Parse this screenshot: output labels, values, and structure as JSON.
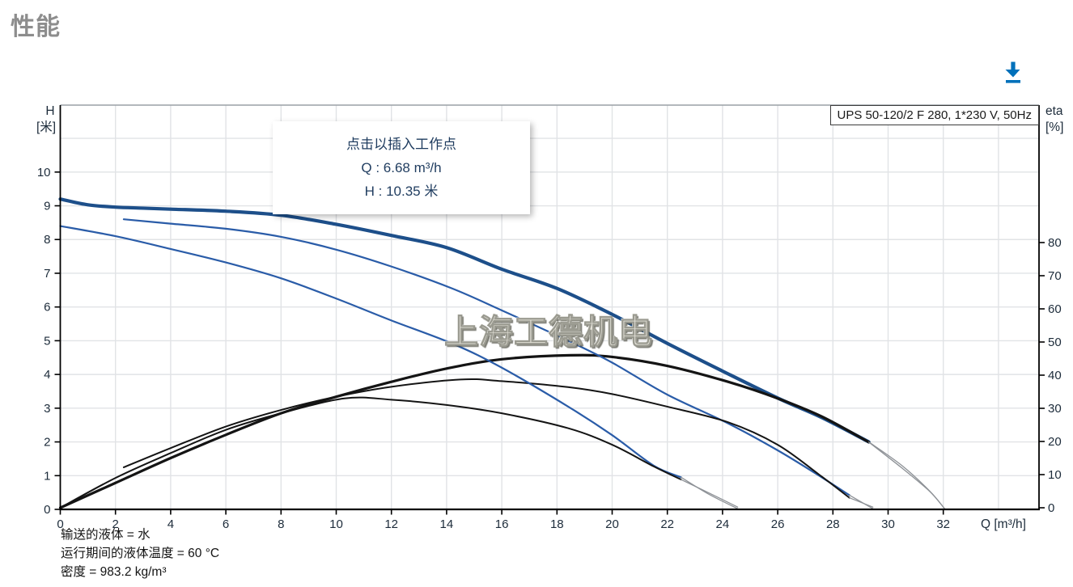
{
  "page": {
    "title": "性能"
  },
  "chart": {
    "pump_label": "UPS 50-120/2 F 280, 1*230 V, 50Hz",
    "tooltip": {
      "line1": "点击以插入工作点",
      "line2": "Q : 6.68 m³/h",
      "line3": "H : 10.35 米"
    },
    "watermark": "上海工德机电",
    "annotations": [
      "输送的液体 = 水",
      "运行期间的液体温度 = 60 °C",
      "密度 = 983.2 kg/m³"
    ],
    "axes": {
      "left": {
        "title_line1": "H",
        "title_line2": "[米]",
        "ticks": [
          0,
          1,
          2,
          3,
          4,
          5,
          6,
          7,
          8,
          9,
          10
        ]
      },
      "right": {
        "title_line1": "eta",
        "title_line2": "[%]",
        "ticks": [
          0,
          10,
          20,
          30,
          40,
          50,
          60,
          70,
          80
        ]
      },
      "bottom": {
        "title": "Q [m³/h]",
        "ticks": [
          0,
          2,
          4,
          6,
          8,
          10,
          12,
          14,
          16,
          18,
          20,
          22,
          24,
          26,
          28,
          30,
          32
        ]
      }
    },
    "colors": {
      "accent_blue": "#0070ba",
      "curve_blue_thick": "#1d4f8a",
      "curve_blue": "#2a5ca8",
      "curve_black": "#141414",
      "curve_gray": "#8d9196",
      "grid": "#e1e3e6",
      "axis": "#000000",
      "top_border": "#9aa0a6",
      "tick_text": "#1c2b3a",
      "tooltip_text": "#1f3c5f",
      "title_gray": "#8d8d8d"
    }
  },
  "chart_data": {
    "type": "line",
    "title": "UPS 50-120/2 F 280, 1*230 V, 50Hz",
    "xlabel": "Q [m³/h]",
    "ylabel_left": "H [米]",
    "ylabel_right": "eta [%]",
    "x_range": [
      0,
      35.5
    ],
    "y_left_range": [
      0,
      12
    ],
    "y_right_range": [
      0,
      122
    ],
    "grid": true,
    "x_grid_step": 2,
    "y_grid_step": 1,
    "series": [
      {
        "name": "head-curve-speed3",
        "axis": "H",
        "style": "thick-blue",
        "points": [
          [
            0,
            9.2
          ],
          [
            1,
            9.03
          ],
          [
            2,
            8.96
          ],
          [
            3,
            8.93
          ],
          [
            4,
            8.9
          ],
          [
            6,
            8.84
          ],
          [
            8,
            8.72
          ],
          [
            10,
            8.45
          ],
          [
            12,
            8.12
          ],
          [
            14,
            7.76
          ],
          [
            16,
            7.12
          ],
          [
            18,
            6.55
          ],
          [
            20,
            5.78
          ],
          [
            22,
            4.92
          ],
          [
            24,
            4.1
          ],
          [
            26,
            3.3
          ],
          [
            27.6,
            2.72
          ],
          [
            29.3,
            2.0
          ]
        ]
      },
      {
        "name": "head-curve-speed3-extension",
        "axis": "H",
        "style": "gray-thin",
        "points": [
          [
            29.3,
            2.0
          ],
          [
            30.5,
            1.3
          ],
          [
            31.5,
            0.55
          ],
          [
            32.05,
            0.02
          ]
        ]
      },
      {
        "name": "eta-curve-speed3",
        "axis": "eta",
        "style": "thick-black",
        "points": [
          [
            0,
            0
          ],
          [
            2,
            7.5
          ],
          [
            4,
            15
          ],
          [
            6,
            22
          ],
          [
            8,
            28.5
          ],
          [
            10,
            33.5
          ],
          [
            12,
            38
          ],
          [
            14,
            42
          ],
          [
            16,
            44.8
          ],
          [
            18.5,
            46
          ],
          [
            20,
            45.5
          ],
          [
            22,
            42.8
          ],
          [
            24.2,
            38
          ],
          [
            26,
            33
          ],
          [
            27.6,
            27.5
          ],
          [
            29.3,
            19.8
          ]
        ]
      },
      {
        "name": "eta-curve-speed3-extension",
        "axis": "eta",
        "style": "gray-thin",
        "points": [
          [
            29.3,
            19.8
          ],
          [
            30.5,
            12
          ],
          [
            31.5,
            5
          ],
          [
            32,
            0.2
          ]
        ]
      },
      {
        "name": "head-curve-speed2",
        "axis": "H",
        "style": "blue",
        "points": [
          [
            2.3,
            8.6
          ],
          [
            4,
            8.47
          ],
          [
            6,
            8.32
          ],
          [
            8,
            8.08
          ],
          [
            10,
            7.7
          ],
          [
            12,
            7.2
          ],
          [
            14.2,
            6.55
          ],
          [
            16,
            5.9
          ],
          [
            18.4,
            5.0
          ],
          [
            20,
            4.35
          ],
          [
            22,
            3.4
          ],
          [
            24.2,
            2.55
          ],
          [
            26,
            1.75
          ],
          [
            27.5,
            1.0
          ],
          [
            28.6,
            0.42
          ]
        ]
      },
      {
        "name": "head-curve-speed2-extension",
        "axis": "H",
        "style": "gray-thin",
        "points": [
          [
            28.6,
            0.42
          ],
          [
            29.45,
            0.02
          ]
        ]
      },
      {
        "name": "eta-curve-speed2",
        "axis": "eta",
        "style": "black",
        "points": [
          [
            2.3,
            12.2
          ],
          [
            4,
            18
          ],
          [
            6,
            24.5
          ],
          [
            8,
            29.5
          ],
          [
            10,
            33.5
          ],
          [
            12,
            36.5
          ],
          [
            14.5,
            38.7
          ],
          [
            16,
            38.2
          ],
          [
            18.4,
            36.4
          ],
          [
            20,
            34.3
          ],
          [
            22,
            30.5
          ],
          [
            24.2,
            25.8
          ],
          [
            26,
            19
          ],
          [
            27.5,
            10
          ],
          [
            28.6,
            3
          ]
        ]
      },
      {
        "name": "eta-curve-speed2-extension",
        "axis": "eta",
        "style": "gray-thin",
        "points": [
          [
            28.6,
            3
          ],
          [
            29.45,
            0.2
          ]
        ]
      },
      {
        "name": "head-curve-speed1",
        "axis": "H",
        "style": "blue",
        "points": [
          [
            0,
            8.4
          ],
          [
            2,
            8.1
          ],
          [
            4,
            7.72
          ],
          [
            6,
            7.32
          ],
          [
            8,
            6.85
          ],
          [
            10,
            6.25
          ],
          [
            12,
            5.6
          ],
          [
            14.25,
            4.9
          ],
          [
            16,
            4.2
          ],
          [
            18.4,
            3.05
          ],
          [
            20,
            2.2
          ],
          [
            21.5,
            1.3
          ],
          [
            22.5,
            0.95
          ]
        ]
      },
      {
        "name": "head-curve-speed1-extension",
        "axis": "H",
        "style": "gray-thin",
        "points": [
          [
            22.5,
            0.95
          ],
          [
            23.5,
            0.45
          ],
          [
            24.55,
            0.02
          ]
        ]
      },
      {
        "name": "eta-curve-speed1",
        "axis": "eta",
        "style": "black",
        "points": [
          [
            0,
            0
          ],
          [
            2,
            9
          ],
          [
            4,
            16.5
          ],
          [
            6,
            23.5
          ],
          [
            8,
            28.5
          ],
          [
            10.3,
            33
          ],
          [
            12,
            32.6
          ],
          [
            14,
            31
          ],
          [
            16,
            28.5
          ],
          [
            18.4,
            24
          ],
          [
            20,
            19
          ],
          [
            21.5,
            12.5
          ],
          [
            22.5,
            8.5
          ]
        ]
      },
      {
        "name": "eta-curve-speed1-extension",
        "axis": "eta",
        "style": "gray-thin",
        "points": [
          [
            22.5,
            8.5
          ],
          [
            23.5,
            4.5
          ],
          [
            24.55,
            0.2
          ]
        ]
      }
    ]
  }
}
